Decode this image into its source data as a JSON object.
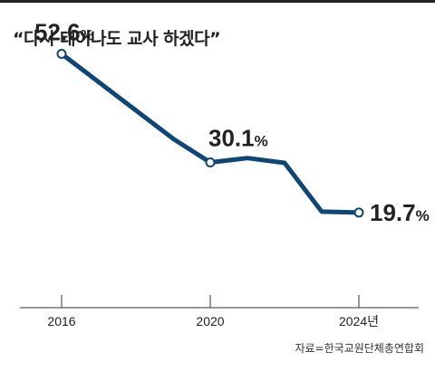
{
  "title": "“다시 태어나도 교사 하겠다”",
  "source": "자료=한국교원단체총연합회",
  "colors": {
    "line": "#0d4677",
    "axis": "#333333",
    "text": "#222222"
  },
  "chart_data": {
    "type": "line",
    "title": "“다시 태어나도 교사 하겠다”",
    "x": [
      2016,
      2019,
      2020,
      2021,
      2022,
      2023,
      2024
    ],
    "series": [
      {
        "values": [
          52.6,
          35.0,
          30.1,
          31.0,
          30.0,
          19.9,
          19.7
        ]
      }
    ],
    "data_labels": [
      {
        "index": 0,
        "text": "52.6",
        "unit": "%"
      },
      {
        "index": 2,
        "text": "30.1",
        "unit": "%"
      },
      {
        "index": 6,
        "text": "19.7",
        "unit": "%"
      }
    ],
    "marker_indices": [
      0,
      2,
      6
    ],
    "xticks": [
      {
        "value": 2016,
        "label": "2016"
      },
      {
        "value": 2020,
        "label": "2020"
      },
      {
        "value": 2024,
        "label": "2024년"
      }
    ],
    "xlim": [
      2016,
      2024
    ],
    "ylim": [
      0,
      60
    ],
    "grid": false,
    "legend": false
  }
}
